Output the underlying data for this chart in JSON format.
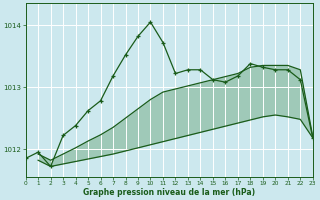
{
  "xlabel_label": "Graphe pression niveau de la mer (hPa)",
  "bg_color": "#cce8ee",
  "grid_color": "#ffffff",
  "line_color": "#1a5c1a",
  "fill_color": "#2d7a2d",
  "x_ticks": [
    0,
    1,
    2,
    3,
    4,
    5,
    6,
    7,
    8,
    9,
    10,
    11,
    12,
    13,
    14,
    15,
    16,
    17,
    18,
    19,
    20,
    21,
    22,
    23
  ],
  "y_ticks": [
    1012,
    1013,
    1014
  ],
  "ylim": [
    1011.55,
    1014.35
  ],
  "xlim": [
    0,
    23
  ],
  "main_line_x": [
    0,
    1,
    2,
    3,
    4,
    5,
    6,
    7,
    8,
    9,
    10,
    11,
    12,
    13,
    14,
    15,
    16,
    17,
    18,
    19,
    20,
    21,
    22,
    23
  ],
  "main_line_y": [
    1011.85,
    1011.95,
    1011.72,
    1012.22,
    1012.38,
    1012.62,
    1012.78,
    1013.18,
    1013.52,
    1013.82,
    1014.05,
    1013.72,
    1013.22,
    1013.28,
    1013.28,
    1013.12,
    1013.08,
    1013.18,
    1013.38,
    1013.32,
    1013.28,
    1013.28,
    1013.12,
    1012.18
  ],
  "lower_line_x": [
    1,
    2,
    3,
    4,
    5,
    6,
    7,
    8,
    9,
    10,
    11,
    12,
    13,
    14,
    15,
    16,
    17,
    18,
    19,
    20,
    21,
    22,
    23
  ],
  "lower_line_y": [
    1011.82,
    1011.72,
    1011.76,
    1011.8,
    1011.84,
    1011.88,
    1011.92,
    1011.97,
    1012.02,
    1012.07,
    1012.12,
    1012.17,
    1012.22,
    1012.27,
    1012.32,
    1012.37,
    1012.42,
    1012.47,
    1012.52,
    1012.55,
    1012.52,
    1012.48,
    1012.18
  ],
  "upper_line_x": [
    1,
    2,
    3,
    4,
    5,
    6,
    7,
    8,
    9,
    10,
    11,
    12,
    13,
    14,
    15,
    16,
    17,
    18,
    19,
    20,
    21,
    22,
    23
  ],
  "upper_line_y": [
    1011.92,
    1011.82,
    1011.92,
    1012.02,
    1012.13,
    1012.23,
    1012.35,
    1012.5,
    1012.65,
    1012.8,
    1012.92,
    1012.97,
    1013.02,
    1013.07,
    1013.12,
    1013.17,
    1013.22,
    1013.32,
    1013.35,
    1013.35,
    1013.35,
    1013.28,
    1012.2
  ]
}
